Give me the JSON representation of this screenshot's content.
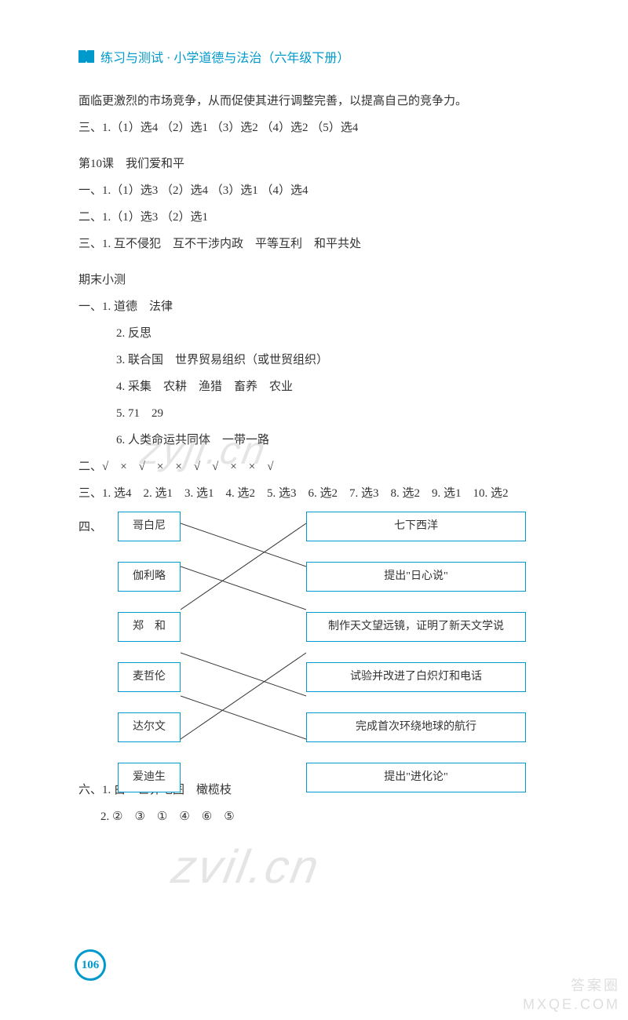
{
  "header": {
    "title": "练习与测试 · 小学道德与法治（六年级下册）"
  },
  "content": {
    "intro_line": "面临更激烈的市场竞争，从而促使其进行调整完善，以提高自己的竞争力。",
    "section3_line": "三、1.（1）选4 （2）选1 （3）选2 （4）选2 （5）选4",
    "lesson10": {
      "title": "第10课　我们爱和平",
      "line1": "一、1.（1）选3 （2）选4 （3）选1 （4）选4",
      "line2": "二、1.（1）选3 （2）选1",
      "line3": "三、1. 互不侵犯　互不干涉内政　平等互利　和平共处"
    },
    "final_test": {
      "title": "期末小测",
      "yi_label": "一、",
      "yi_1": "1. 道德　法律",
      "yi_2": "2. 反思",
      "yi_3": "3. 联合国　世界贸易组织（或世贸组织）",
      "yi_4": "4. 采集　农耕　渔猎　畜养　农业",
      "yi_5": "5. 71　29",
      "yi_6": "6. 人类命运共同体　一带一路",
      "er_line": "二、√　×　√　×　×　√　√　×　×　√",
      "san_line": "三、1. 选4　2. 选1　3. 选1　4. 选2　5. 选3　6. 选2　7. 选3　8. 选2　9. 选1　10. 选2",
      "si_label": "四、",
      "liu_1": "六、1. 白　世界地图　橄榄枝",
      "liu_2": "2. ②　③　①　④　⑥　⑤"
    },
    "matching": {
      "left": [
        "哥白尼",
        "伽利略",
        "郑　和",
        "麦哲伦",
        "达尔文",
        "爱迪生"
      ],
      "right": [
        "七下西洋",
        "提出\"日心说\"",
        "制作天文望远镜，证明了新天文学说",
        "试验并改进了白炽灯和电话",
        "完成首次环绕地球的航行",
        "提出\"进化论\""
      ],
      "connections": [
        {
          "from": 0,
          "to": 1
        },
        {
          "from": 1,
          "to": 2
        },
        {
          "from": 2,
          "to": 0
        },
        {
          "from": 3,
          "to": 4
        },
        {
          "from": 4,
          "to": 5
        },
        {
          "from": 5,
          "to": 3
        }
      ],
      "box_spacing": 55,
      "left_box_width": 80,
      "right_box_width": 280,
      "line_color": "#333333"
    }
  },
  "page_number": "106",
  "watermarks": {
    "wm1": "zyjl.cn",
    "wm2": "zvil.cn",
    "corner_line1": "答案圈",
    "corner_line2": "MXQE.COM"
  },
  "colors": {
    "accent": "#0099cc",
    "text": "#333333",
    "background": "#ffffff"
  }
}
